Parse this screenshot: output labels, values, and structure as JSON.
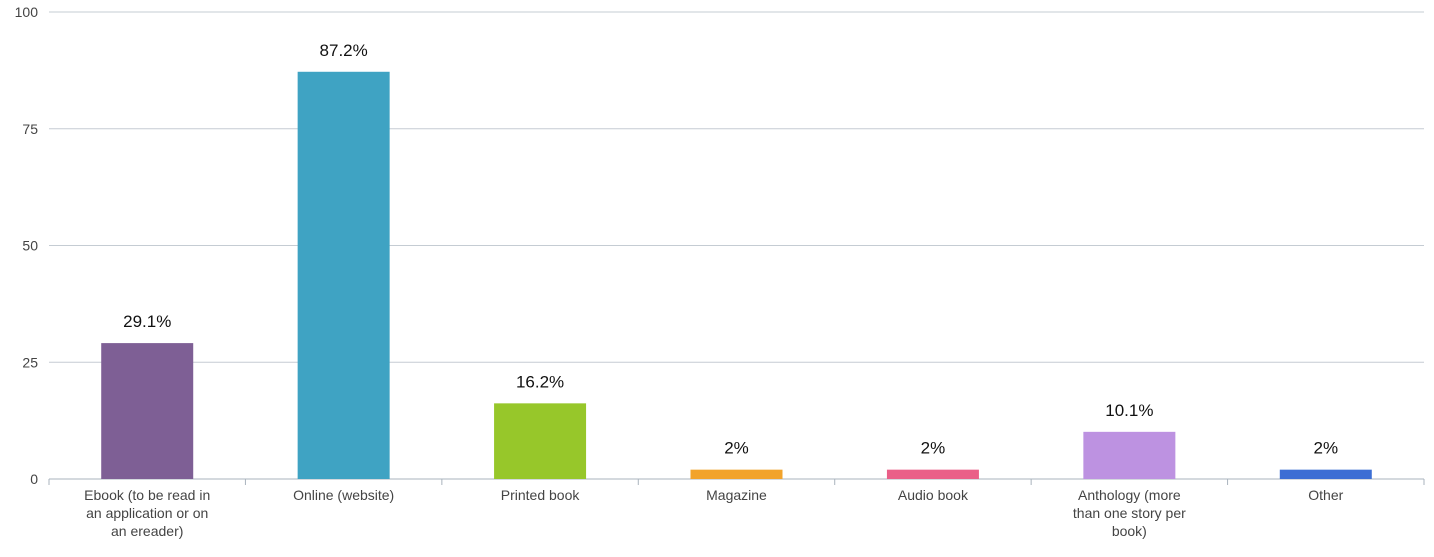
{
  "chart_data": {
    "type": "bar",
    "categories": [
      "Ebook (to be read in an application or on an ereader)",
      "Online (website)",
      "Printed book",
      "Magazine",
      "Audio book",
      "Anthology (more than one story per book)",
      "Other"
    ],
    "category_label_lines": [
      [
        "Ebook (to be read in",
        "an application or on",
        "an ereader)"
      ],
      [
        "Online (website)"
      ],
      [
        "Printed book"
      ],
      [
        "Magazine"
      ],
      [
        "Audio book"
      ],
      [
        "Anthology (more",
        "than one story per",
        "book)"
      ],
      [
        "Other"
      ]
    ],
    "values": [
      29.1,
      87.2,
      16.2,
      2,
      2,
      10.1,
      2
    ],
    "data_labels": [
      "29.1%",
      "87.2%",
      "16.2%",
      "2%",
      "2%",
      "10.1%",
      "2%"
    ],
    "colors": [
      "#7e5f95",
      "#3fa3c3",
      "#97c72a",
      "#f2a32b",
      "#ea5f88",
      "#bd92e1",
      "#3c6ed4"
    ],
    "ylim": [
      0,
      100
    ],
    "yticks": [
      0,
      25,
      50,
      75,
      100
    ],
    "grid": true,
    "legend": "none",
    "title": "",
    "xlabel": "",
    "ylabel": ""
  }
}
